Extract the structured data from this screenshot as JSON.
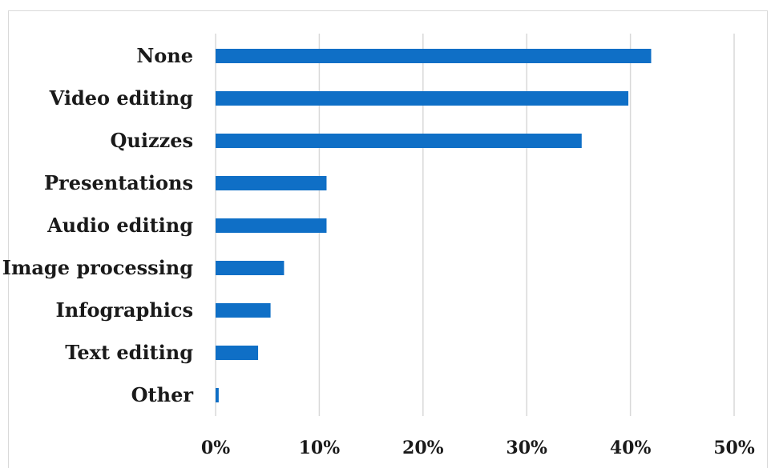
{
  "chart_data": {
    "type": "bar",
    "orientation": "horizontal",
    "categories": [
      "None",
      "Video editing",
      "Quizzes",
      "Presentations",
      "Audio editing",
      "Image processing",
      "Infographics",
      "Text editing",
      "Other"
    ],
    "values": [
      42,
      39.8,
      35.3,
      10.7,
      10.7,
      6.6,
      5.3,
      4.1,
      0.3
    ],
    "x_ticks": [
      "0%",
      "10%",
      "20%",
      "30%",
      "40%",
      "50%"
    ],
    "xlim": [
      0,
      50
    ],
    "title": "",
    "xlabel": "",
    "ylabel": "",
    "grid": "vertical",
    "legend": "none",
    "colors": {
      "bar": "#0f6fc6",
      "grid": "#d9d9d9"
    }
  }
}
